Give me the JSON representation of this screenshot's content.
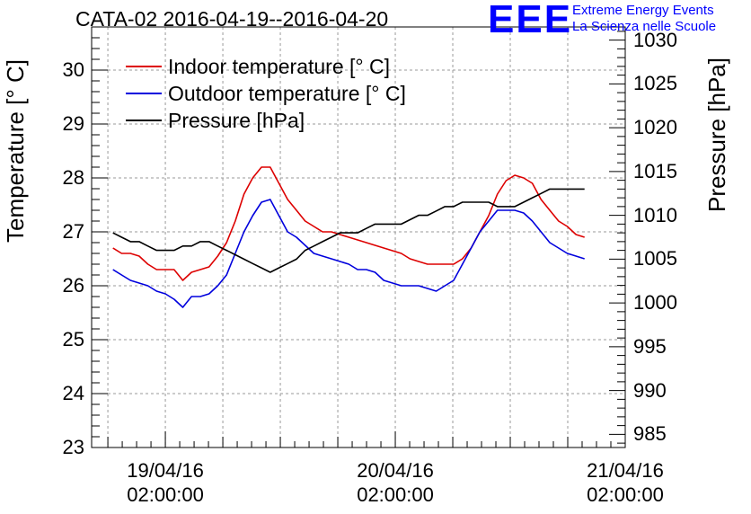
{
  "title": "CATA-02 2016-04-19--2016-04-20",
  "logo": {
    "mark": "EEE",
    "line1": "Extreme Energy Events",
    "line2": "La Scienza nelle Scuole"
  },
  "chart_data": {
    "type": "line",
    "ylabel": "Temperature [° C]",
    "y2label": "Pressure [hPa]",
    "ylim": [
      23,
      30.8
    ],
    "y2lim": [
      983.5,
      1031.5
    ],
    "yticks": [
      "23",
      "24",
      "25",
      "26",
      "27",
      "28",
      "29",
      "30"
    ],
    "y2ticks": [
      "985",
      "990",
      "995",
      "1000",
      "1005",
      "1010",
      "1015",
      "1020",
      "1025",
      "1030"
    ],
    "xlim": [
      -0.3206,
      2.0
    ],
    "xticks": [
      {
        "date": "19/04/16",
        "time": "02:00:00",
        "x": 0
      },
      {
        "date": "20/04/16",
        "time": "02:00:00",
        "x": 1
      },
      {
        "date": "21/04/16",
        "time": "02:00:00",
        "x": 2
      }
    ],
    "grid": true,
    "legend_position": "top-left",
    "series": [
      {
        "name": "Indoor temperature [° C]",
        "color": "#dd0000",
        "axis": "left",
        "x": [
          -0.228,
          -0.19,
          -0.152,
          -0.114,
          -0.076,
          -0.038,
          0.0,
          0.038,
          0.076,
          0.114,
          0.152,
          0.19,
          0.228,
          0.266,
          0.304,
          0.342,
          0.38,
          0.418,
          0.456,
          0.494,
          0.532,
          0.57,
          0.608,
          0.646,
          0.684,
          0.722,
          0.76,
          0.798,
          0.836,
          0.874,
          0.912,
          0.95,
          0.988,
          1.026,
          1.064,
          1.102,
          1.14,
          1.178,
          1.216,
          1.254,
          1.292,
          1.33,
          1.368,
          1.406,
          1.444,
          1.482,
          1.52,
          1.558,
          1.596,
          1.634,
          1.672,
          1.71,
          1.748,
          1.786,
          1.823
        ],
        "values": [
          26.7,
          26.6,
          26.6,
          26.55,
          26.4,
          26.3,
          26.3,
          26.3,
          26.1,
          26.25,
          26.3,
          26.35,
          26.55,
          26.8,
          27.2,
          27.7,
          28.0,
          28.2,
          28.2,
          27.9,
          27.6,
          27.4,
          27.2,
          27.1,
          27.0,
          27.0,
          26.95,
          26.9,
          26.85,
          26.8,
          26.75,
          26.7,
          26.65,
          26.6,
          26.5,
          26.45,
          26.4,
          26.4,
          26.4,
          26.4,
          26.5,
          26.7,
          27.0,
          27.3,
          27.7,
          27.95,
          28.05,
          28.0,
          27.9,
          27.6,
          27.4,
          27.2,
          27.1,
          26.95,
          26.9
        ]
      },
      {
        "name": "Outdoor temperature [° C]",
        "color": "#0000dd",
        "axis": "left",
        "x": [
          -0.228,
          -0.19,
          -0.152,
          -0.114,
          -0.076,
          -0.038,
          0.0,
          0.038,
          0.076,
          0.114,
          0.152,
          0.19,
          0.228,
          0.266,
          0.304,
          0.342,
          0.38,
          0.418,
          0.456,
          0.494,
          0.532,
          0.57,
          0.608,
          0.646,
          0.684,
          0.722,
          0.76,
          0.798,
          0.836,
          0.874,
          0.912,
          0.95,
          0.988,
          1.026,
          1.064,
          1.102,
          1.14,
          1.178,
          1.216,
          1.254,
          1.292,
          1.33,
          1.368,
          1.406,
          1.444,
          1.482,
          1.52,
          1.558,
          1.596,
          1.634,
          1.672,
          1.71,
          1.748,
          1.786,
          1.823
        ],
        "values": [
          26.3,
          26.2,
          26.1,
          26.05,
          26.0,
          25.9,
          25.85,
          25.75,
          25.6,
          25.8,
          25.8,
          25.85,
          26.0,
          26.2,
          26.6,
          27.0,
          27.3,
          27.55,
          27.6,
          27.3,
          27.0,
          26.9,
          26.75,
          26.6,
          26.55,
          26.5,
          26.45,
          26.4,
          26.3,
          26.3,
          26.25,
          26.1,
          26.05,
          26.0,
          26.0,
          26.0,
          25.95,
          25.9,
          26.0,
          26.1,
          26.4,
          26.7,
          27.0,
          27.2,
          27.4,
          27.4,
          27.4,
          27.35,
          27.2,
          27.0,
          26.8,
          26.7,
          26.6,
          26.55,
          26.5
        ]
      },
      {
        "name": "Pressure [hPa]",
        "color": "#000000",
        "axis": "right",
        "x": [
          -0.228,
          -0.19,
          -0.152,
          -0.114,
          -0.076,
          -0.038,
          0.0,
          0.038,
          0.076,
          0.114,
          0.152,
          0.19,
          0.228,
          0.266,
          0.304,
          0.342,
          0.38,
          0.418,
          0.456,
          0.494,
          0.532,
          0.57,
          0.608,
          0.646,
          0.684,
          0.722,
          0.76,
          0.798,
          0.836,
          0.874,
          0.912,
          0.95,
          0.988,
          1.026,
          1.064,
          1.102,
          1.14,
          1.178,
          1.216,
          1.254,
          1.292,
          1.33,
          1.368,
          1.406,
          1.444,
          1.482,
          1.52,
          1.558,
          1.596,
          1.634,
          1.672,
          1.71,
          1.748,
          1.786,
          1.823
        ],
        "values": [
          1008.0,
          1007.5,
          1007.0,
          1007.0,
          1006.5,
          1006.0,
          1006.0,
          1006.0,
          1006.5,
          1006.5,
          1007.0,
          1007.0,
          1006.5,
          1006.0,
          1005.5,
          1005.0,
          1004.5,
          1004.0,
          1003.5,
          1004.0,
          1004.5,
          1005.0,
          1006.0,
          1006.5,
          1007.0,
          1007.5,
          1008.0,
          1008.0,
          1008.0,
          1008.5,
          1009.0,
          1009.0,
          1009.0,
          1009.0,
          1009.5,
          1010.0,
          1010.0,
          1010.5,
          1011.0,
          1011.0,
          1011.5,
          1011.5,
          1011.5,
          1011.5,
          1011.0,
          1011.0,
          1011.0,
          1011.5,
          1012.0,
          1012.5,
          1013.0,
          1013.0,
          1013.0,
          1013.0,
          1013.0
        ]
      }
    ]
  }
}
